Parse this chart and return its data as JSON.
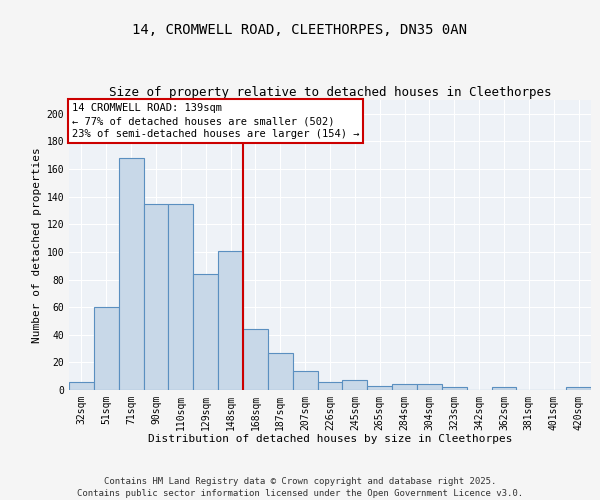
{
  "title1": "14, CROMWELL ROAD, CLEETHORPES, DN35 0AN",
  "title2": "Size of property relative to detached houses in Cleethorpes",
  "xlabel": "Distribution of detached houses by size in Cleethorpes",
  "ylabel": "Number of detached properties",
  "categories": [
    "32sqm",
    "51sqm",
    "71sqm",
    "90sqm",
    "110sqm",
    "129sqm",
    "148sqm",
    "168sqm",
    "187sqm",
    "207sqm",
    "226sqm",
    "245sqm",
    "265sqm",
    "284sqm",
    "304sqm",
    "323sqm",
    "342sqm",
    "362sqm",
    "381sqm",
    "401sqm",
    "420sqm"
  ],
  "values": [
    6,
    60,
    168,
    135,
    135,
    84,
    101,
    44,
    27,
    14,
    6,
    7,
    3,
    4,
    4,
    2,
    0,
    2,
    0,
    0,
    2
  ],
  "bar_color": "#c8d8e8",
  "bar_edge_color": "#5a8fc0",
  "bar_edge_width": 0.8,
  "red_line_x": 6.5,
  "annotation_text": "14 CROMWELL ROAD: 139sqm\n← 77% of detached houses are smaller (502)\n23% of semi-detached houses are larger (154) →",
  "annotation_box_color": "#ffffff",
  "annotation_box_edge_color": "#cc0000",
  "ylim": [
    0,
    210
  ],
  "yticks": [
    0,
    20,
    40,
    60,
    80,
    100,
    120,
    140,
    160,
    180,
    200
  ],
  "footer": "Contains HM Land Registry data © Crown copyright and database right 2025.\nContains public sector information licensed under the Open Government Licence v3.0.",
  "bg_color": "#eef2f7",
  "fig_bg_color": "#f5f5f5",
  "grid_color": "#ffffff",
  "title_fontsize": 10,
  "subtitle_fontsize": 9,
  "label_fontsize": 8,
  "tick_fontsize": 7,
  "annotation_fontsize": 7.5,
  "footer_fontsize": 6.5
}
